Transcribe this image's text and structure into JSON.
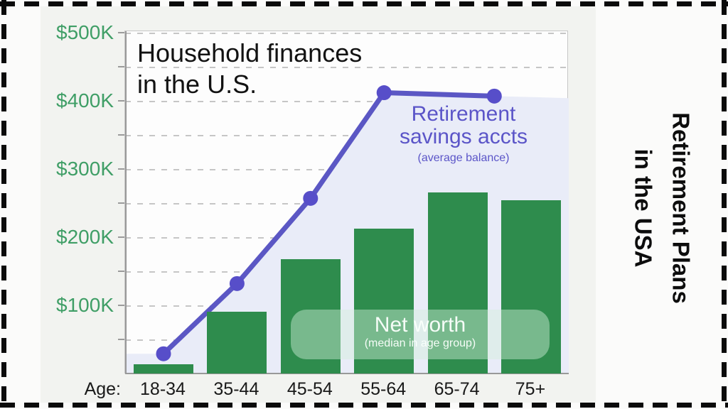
{
  "frame": {
    "border_color": "#0b0b0b",
    "panel_bg": "#f2f3f0",
    "page_bg": "#fbfbfa"
  },
  "side_title": {
    "line1": "Retirement Plans",
    "line2": "in the USA"
  },
  "chart": {
    "title_line1": "Household finances",
    "title_line2": "in the U.S.",
    "x_axis_prefix": "Age:",
    "line_label": {
      "line1": "Retirement",
      "line2": "savings accts",
      "sub": "(average balance)"
    },
    "bar_label": {
      "main": "Net worth",
      "sub": "(median in age group)"
    },
    "colors": {
      "bar": "#2e8c4d",
      "line": "#5b57c4",
      "marker": "#574ec9",
      "area_fill": "#e9ecf8",
      "y_label": "#3f9e66",
      "grid": "#b3b3b3",
      "axis": "#999999",
      "label_purple": "#5b55c8"
    }
  },
  "chart_data": {
    "type": "bar+line",
    "title": "Household finances in the U.S.",
    "xlabel": "Age",
    "categories": [
      "18-34",
      "35-44",
      "45-54",
      "55-64",
      "65-74",
      "75+"
    ],
    "y_tick_labels": [
      "$500K",
      "$400K",
      "$300K",
      "$200K",
      "$100K"
    ],
    "y_tick_values": [
      500000,
      400000,
      300000,
      200000,
      100000
    ],
    "ylim": [
      0,
      503000
    ],
    "grid": "dashed horizontal lines every $50K",
    "legend_position": "labels drawn inside plot",
    "series": [
      {
        "name": "Net worth (median in age group)",
        "type": "bar",
        "color": "#2e8c4d",
        "values": [
          14000,
          91000,
          168000,
          213000,
          266000,
          254000
        ]
      },
      {
        "name": "Retirement savings accts (average balance)",
        "type": "line+area",
        "color": "#5b57c4",
        "points": [
          {
            "category": "18-34",
            "x_index": 0,
            "value": 30000
          },
          {
            "category": "35-44",
            "x_index": 1,
            "value": 133000
          },
          {
            "category": "45-54",
            "x_index": 2,
            "value": 258000
          },
          {
            "category": "55-64",
            "x_index": 3,
            "value": 413000
          },
          {
            "category": "65-74/75+ midpoint",
            "x_index": 4.5,
            "value": 408000
          }
        ],
        "area_edge_values": {
          "left_edge": 30000,
          "right_edge": 405000
        }
      }
    ]
  }
}
